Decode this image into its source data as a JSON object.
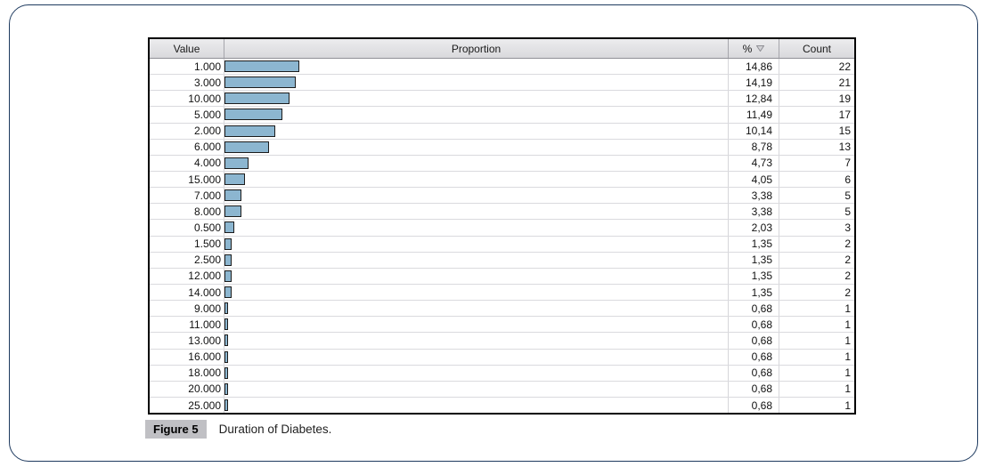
{
  "table": {
    "headers": {
      "value": "Value",
      "proportion": "Proportion",
      "percent": "%",
      "count": "Count"
    },
    "percent_sort_icon": "triangle-down-filter",
    "rows": [
      {
        "value": "1.000",
        "percent": "14,86",
        "percent_num": 14.86,
        "count": "22"
      },
      {
        "value": "3.000",
        "percent": "14,19",
        "percent_num": 14.19,
        "count": "21"
      },
      {
        "value": "10.000",
        "percent": "12,84",
        "percent_num": 12.84,
        "count": "19"
      },
      {
        "value": "5.000",
        "percent": "11,49",
        "percent_num": 11.49,
        "count": "17"
      },
      {
        "value": "2.000",
        "percent": "10,14",
        "percent_num": 10.14,
        "count": "15"
      },
      {
        "value": "6.000",
        "percent": "8,78",
        "percent_num": 8.78,
        "count": "13"
      },
      {
        "value": "4.000",
        "percent": "4,73",
        "percent_num": 4.73,
        "count": "7"
      },
      {
        "value": "15.000",
        "percent": "4,05",
        "percent_num": 4.05,
        "count": "6"
      },
      {
        "value": "7.000",
        "percent": "3,38",
        "percent_num": 3.38,
        "count": "5"
      },
      {
        "value": "8.000",
        "percent": "3,38",
        "percent_num": 3.38,
        "count": "5"
      },
      {
        "value": "0.500",
        "percent": "2,03",
        "percent_num": 2.03,
        "count": "3"
      },
      {
        "value": "1.500",
        "percent": "1,35",
        "percent_num": 1.35,
        "count": "2"
      },
      {
        "value": "2.500",
        "percent": "1,35",
        "percent_num": 1.35,
        "count": "2"
      },
      {
        "value": "12.000",
        "percent": "1,35",
        "percent_num": 1.35,
        "count": "2"
      },
      {
        "value": "14.000",
        "percent": "1,35",
        "percent_num": 1.35,
        "count": "2"
      },
      {
        "value": "9.000",
        "percent": "0,68",
        "percent_num": 0.68,
        "count": "1"
      },
      {
        "value": "11.000",
        "percent": "0,68",
        "percent_num": 0.68,
        "count": "1"
      },
      {
        "value": "13.000",
        "percent": "0,68",
        "percent_num": 0.68,
        "count": "1"
      },
      {
        "value": "16.000",
        "percent": "0,68",
        "percent_num": 0.68,
        "count": "1"
      },
      {
        "value": "18.000",
        "percent": "0,68",
        "percent_num": 0.68,
        "count": "1"
      },
      {
        "value": "20.000",
        "percent": "0,68",
        "percent_num": 0.68,
        "count": "1"
      },
      {
        "value": "25.000",
        "percent": "0,68",
        "percent_num": 0.68,
        "count": "1"
      }
    ],
    "colors": {
      "bar_fill": "#8cb6d0",
      "bar_border": "#1c1c1c",
      "header_bg": "#e0e0e3",
      "frame_border": "#1e3a5f",
      "caption_label_bg": "#c0c0c4"
    }
  },
  "caption": {
    "label": "Figure 5",
    "text": "Duration of Diabetes."
  },
  "chart_data": {
    "type": "table",
    "title": "Duration of Diabetes",
    "columns": [
      "Value",
      "Proportion",
      "%",
      "Count"
    ],
    "categories": [
      "1.000",
      "3.000",
      "10.000",
      "5.000",
      "2.000",
      "6.000",
      "4.000",
      "15.000",
      "7.000",
      "8.000",
      "0.500",
      "1.500",
      "2.500",
      "12.000",
      "14.000",
      "9.000",
      "11.000",
      "13.000",
      "16.000",
      "18.000",
      "20.000",
      "25.000"
    ],
    "series": [
      {
        "name": "%",
        "values": [
          14.86,
          14.19,
          12.84,
          11.49,
          10.14,
          8.78,
          4.73,
          4.05,
          3.38,
          3.38,
          2.03,
          1.35,
          1.35,
          1.35,
          1.35,
          0.68,
          0.68,
          0.68,
          0.68,
          0.68,
          0.68,
          0.68
        ]
      },
      {
        "name": "Count",
        "values": [
          22,
          21,
          19,
          17,
          15,
          13,
          7,
          6,
          5,
          5,
          3,
          2,
          2,
          2,
          2,
          1,
          1,
          1,
          1,
          1,
          1,
          1
        ]
      }
    ],
    "layout": {
      "proportion_bar_scale": "percent of full column width = 100%",
      "sort": "% descending"
    }
  }
}
